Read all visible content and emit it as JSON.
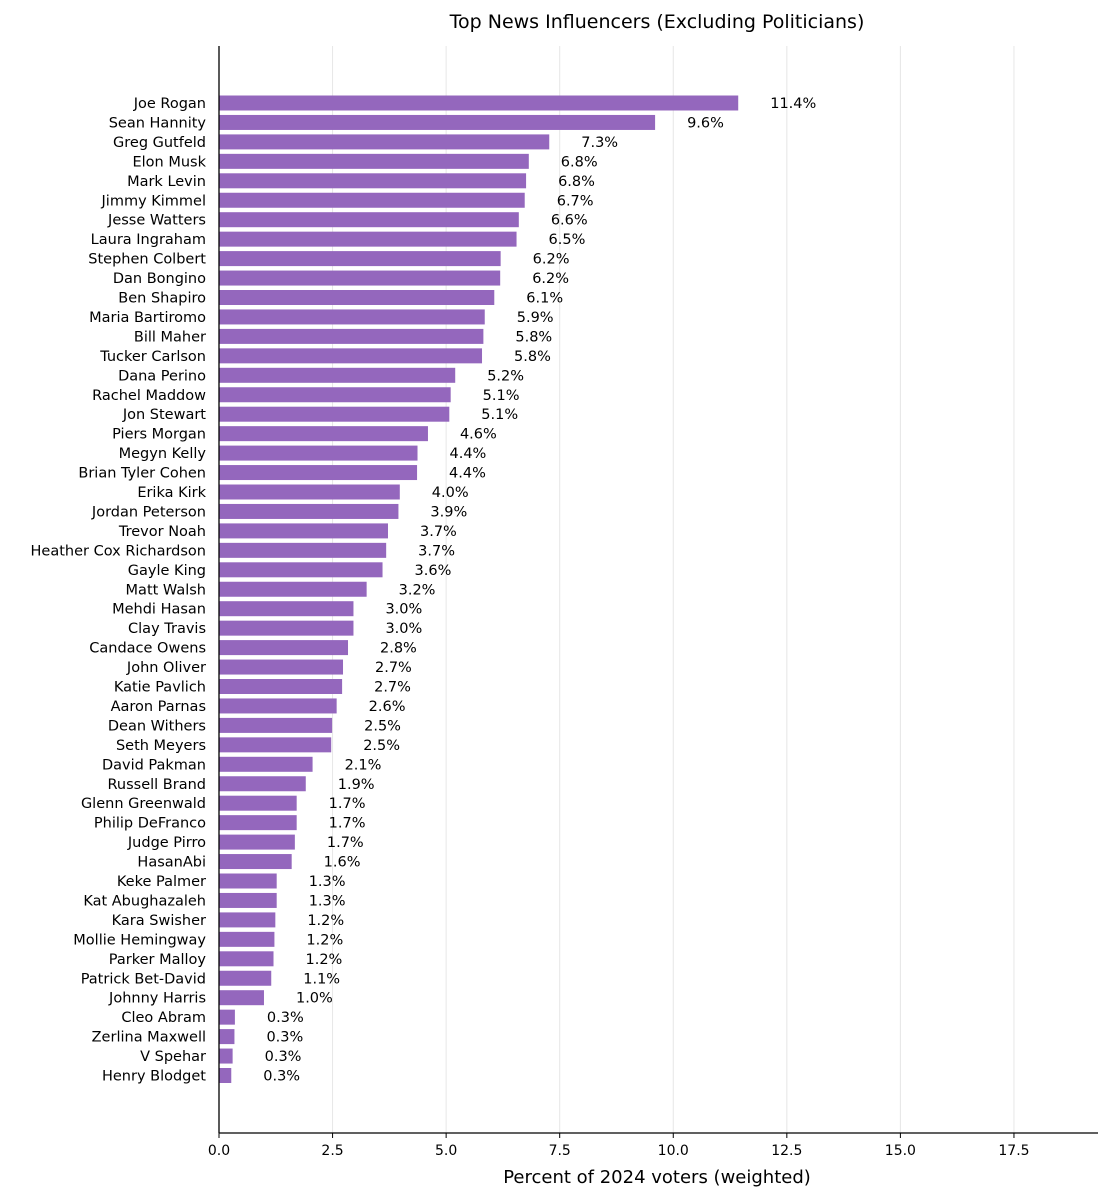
{
  "chart_data": {
    "type": "bar",
    "orientation": "horizontal",
    "title": "Top News Influencers (Excluding Politicians)",
    "xlabel": "Percent of 2024 voters (weighted)",
    "ylabel": "",
    "xlim": [
      0,
      19.35
    ],
    "xticks": [
      0,
      2.5,
      5,
      7.5,
      10,
      12.5,
      15,
      17.5
    ],
    "xtick_labels": [
      "0.0",
      "2.5",
      "5.0",
      "7.5",
      "10.0",
      "12.5",
      "15.0",
      "17.5"
    ],
    "grid": "x",
    "bar_color": "#9467bd",
    "categories": [
      "Joe Rogan",
      "Sean Hannity",
      "Greg Gutfeld",
      "Elon Musk",
      "Mark Levin",
      "Jimmy Kimmel",
      "Jesse Watters",
      "Laura Ingraham",
      "Stephen Colbert",
      "Dan Bongino",
      "Ben Shapiro",
      "Maria Bartiromo",
      "Bill Maher",
      "Tucker Carlson",
      "Dana Perino",
      "Rachel Maddow",
      "Jon Stewart",
      "Piers Morgan",
      "Megyn Kelly",
      "Brian Tyler Cohen",
      "Erika Kirk",
      "Jordan Peterson",
      "Trevor Noah",
      "Heather Cox Richardson",
      "Gayle King",
      "Matt Walsh",
      "Mehdi Hasan",
      "Clay Travis",
      "Candace Owens",
      "John Oliver",
      "Katie Pavlich",
      "Aaron Parnas",
      "Dean Withers",
      "Seth Meyers",
      "David Pakman",
      "Russell Brand",
      "Glenn Greenwald",
      "Philip DeFranco",
      "Judge Pirro",
      "HasanAbi",
      "Keke Palmer",
      "Kat Abughazaleh",
      "Kara Swisher",
      "Mollie Hemingway",
      "Parker Malloy",
      "Patrick Bet-David",
      "Johnny Harris",
      "Cleo Abram",
      "Zerlina Maxwell",
      "V Spehar",
      "Henry Blodget"
    ],
    "values": [
      11.43,
      9.6,
      7.27,
      6.82,
      6.76,
      6.73,
      6.6,
      6.55,
      6.2,
      6.19,
      6.06,
      5.85,
      5.82,
      5.79,
      5.2,
      5.1,
      5.07,
      4.6,
      4.37,
      4.36,
      3.98,
      3.95,
      3.72,
      3.68,
      3.6,
      3.25,
      2.96,
      2.96,
      2.84,
      2.73,
      2.71,
      2.59,
      2.49,
      2.47,
      2.06,
      1.91,
      1.71,
      1.71,
      1.67,
      1.6,
      1.27,
      1.27,
      1.24,
      1.22,
      1.2,
      1.15,
      0.99,
      0.35,
      0.34,
      0.3,
      0.27
    ],
    "value_labels": [
      "11.4%",
      "9.6%",
      "7.3%",
      "6.8%",
      "6.8%",
      "6.7%",
      "6.6%",
      "6.5%",
      "6.2%",
      "6.2%",
      "6.1%",
      "5.9%",
      "5.8%",
      "5.8%",
      "5.2%",
      "5.1%",
      "5.1%",
      "4.6%",
      "4.4%",
      "4.4%",
      "4.0%",
      "3.9%",
      "3.7%",
      "3.7%",
      "3.6%",
      "3.2%",
      "3.0%",
      "3.0%",
      "2.8%",
      "2.7%",
      "2.7%",
      "2.6%",
      "2.5%",
      "2.5%",
      "2.1%",
      "1.9%",
      "1.7%",
      "1.7%",
      "1.7%",
      "1.6%",
      "1.3%",
      "1.3%",
      "1.2%",
      "1.2%",
      "1.2%",
      "1.1%",
      "1.0%",
      "0.3%",
      "0.3%",
      "0.3%",
      "0.3%"
    ]
  }
}
